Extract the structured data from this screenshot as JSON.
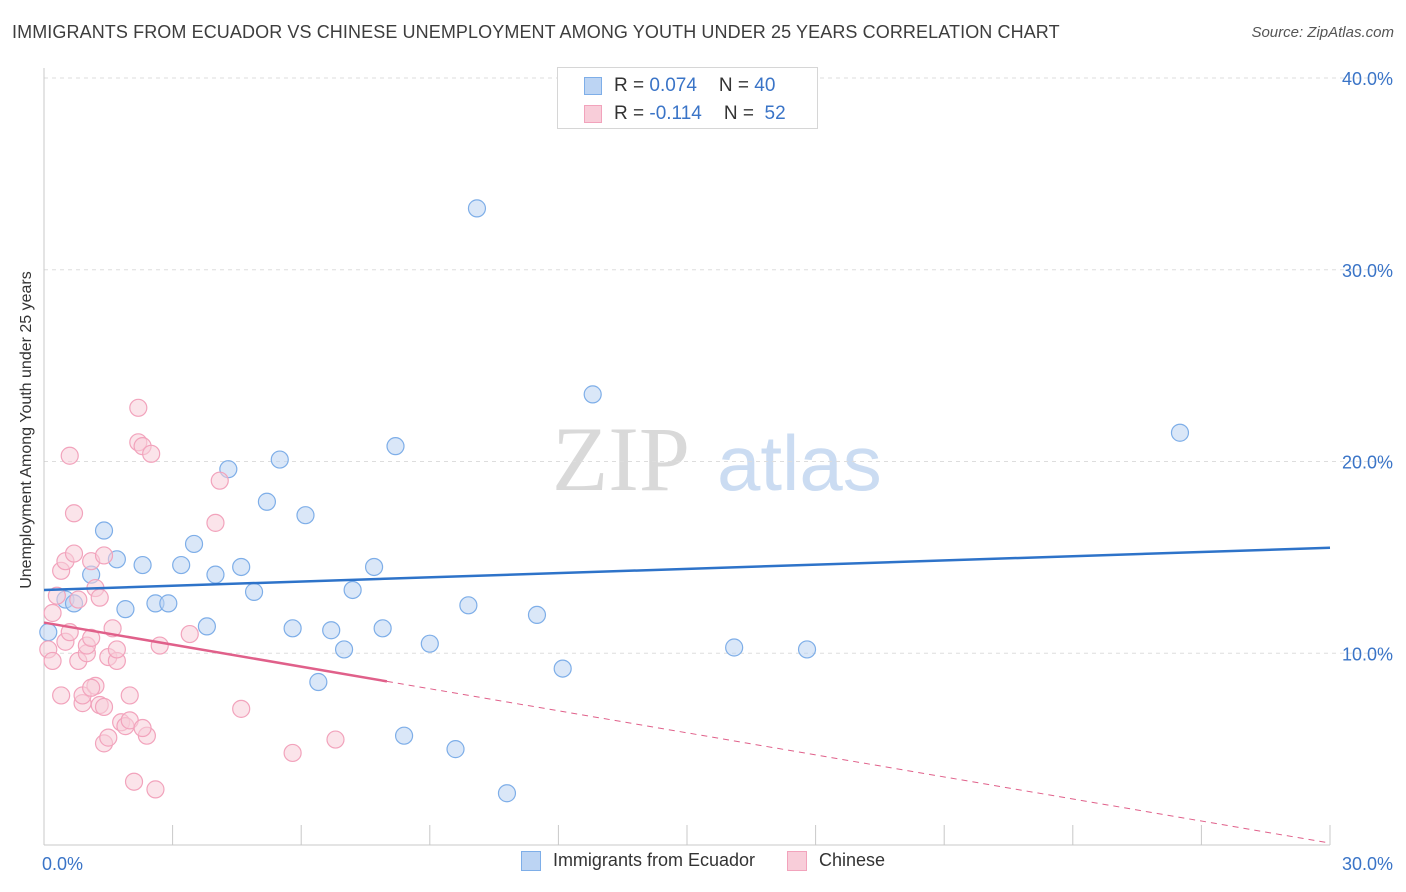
{
  "chart_data": {
    "type": "scatter",
    "title": "IMMIGRANTS FROM ECUADOR VS CHINESE UNEMPLOYMENT AMONG YOUTH UNDER 25 YEARS CORRELATION CHART",
    "source": "Source: ZipAtlas.com",
    "watermark": {
      "zip": "ZIP",
      "atlas": "atlas"
    },
    "ylabel": "Unemployment Among Youth under 25 years",
    "xlim": [
      0,
      30
    ],
    "ylim": [
      0,
      40
    ],
    "x_tick_labels": {
      "left": "0.0%",
      "right": "30.0%"
    },
    "y_ticks": [
      {
        "value": 10,
        "label": "10.0%"
      },
      {
        "value": 20,
        "label": "20.0%"
      },
      {
        "value": 30,
        "label": "30.0%"
      },
      {
        "value": 40,
        "label": "40.0%"
      }
    ],
    "series": [
      {
        "name": "Immigrants from Ecuador",
        "color": "#7eaee8",
        "fill": "#bcd4f3",
        "line_color": "#2e73c9",
        "R": "0.074",
        "N": "40",
        "trend": {
          "x0": 0,
          "y0": 13.3,
          "x1": 30,
          "y1": 15.5,
          "dashed_from": null
        },
        "points": [
          [
            0.1,
            11.1
          ],
          [
            0.5,
            12.8
          ],
          [
            0.7,
            12.6
          ],
          [
            1.1,
            14.1
          ],
          [
            1.4,
            16.4
          ],
          [
            1.7,
            14.9
          ],
          [
            1.9,
            12.3
          ],
          [
            2.3,
            14.6
          ],
          [
            2.6,
            12.6
          ],
          [
            2.9,
            12.6
          ],
          [
            3.2,
            14.6
          ],
          [
            3.5,
            15.7
          ],
          [
            3.8,
            11.4
          ],
          [
            4.0,
            14.1
          ],
          [
            4.3,
            19.6
          ],
          [
            4.6,
            14.5
          ],
          [
            4.9,
            13.2
          ],
          [
            5.2,
            17.9
          ],
          [
            5.5,
            20.1
          ],
          [
            5.8,
            11.3
          ],
          [
            6.1,
            17.2
          ],
          [
            6.4,
            8.5
          ],
          [
            6.7,
            11.2
          ],
          [
            7.0,
            10.2
          ],
          [
            7.2,
            13.3
          ],
          [
            7.7,
            14.5
          ],
          [
            7.9,
            11.3
          ],
          [
            8.2,
            20.8
          ],
          [
            8.4,
            5.7
          ],
          [
            9.0,
            10.5
          ],
          [
            9.6,
            5.0
          ],
          [
            9.9,
            12.5
          ],
          [
            10.1,
            33.2
          ],
          [
            10.8,
            2.7
          ],
          [
            11.5,
            12.0
          ],
          [
            12.1,
            9.2
          ],
          [
            12.8,
            23.5
          ],
          [
            16.1,
            10.3
          ],
          [
            17.8,
            10.2
          ],
          [
            26.5,
            21.5
          ]
        ]
      },
      {
        "name": "Chinese",
        "color": "#f2a3bc",
        "fill": "#f8cdd9",
        "line_color": "#e0608a",
        "R": "-0.114",
        "N": "52",
        "trend": {
          "x0": 0,
          "y0": 11.6,
          "x1": 30,
          "y1": 0.1,
          "dashed_from": 8.0
        },
        "points": [
          [
            0.1,
            10.2
          ],
          [
            0.2,
            9.6
          ],
          [
            0.2,
            12.1
          ],
          [
            0.3,
            13.0
          ],
          [
            0.4,
            14.3
          ],
          [
            0.4,
            7.8
          ],
          [
            0.5,
            10.6
          ],
          [
            0.5,
            14.8
          ],
          [
            0.6,
            11.1
          ],
          [
            0.6,
            20.3
          ],
          [
            0.7,
            17.3
          ],
          [
            0.7,
            15.2
          ],
          [
            0.8,
            9.6
          ],
          [
            0.9,
            7.4
          ],
          [
            0.9,
            7.8
          ],
          [
            1.0,
            10.0
          ],
          [
            1.0,
            10.4
          ],
          [
            1.1,
            14.8
          ],
          [
            1.1,
            10.8
          ],
          [
            1.2,
            13.4
          ],
          [
            1.2,
            8.3
          ],
          [
            1.3,
            12.9
          ],
          [
            1.3,
            7.3
          ],
          [
            1.4,
            15.1
          ],
          [
            1.4,
            5.3
          ],
          [
            1.5,
            9.8
          ],
          [
            1.5,
            5.6
          ],
          [
            1.6,
            11.3
          ],
          [
            1.7,
            9.6
          ],
          [
            1.7,
            10.2
          ],
          [
            1.8,
            6.4
          ],
          [
            1.9,
            6.2
          ],
          [
            2.0,
            6.5
          ],
          [
            2.0,
            7.8
          ],
          [
            2.1,
            3.3
          ],
          [
            2.2,
            22.8
          ],
          [
            2.2,
            21.0
          ],
          [
            2.3,
            20.8
          ],
          [
            2.4,
            5.7
          ],
          [
            2.5,
            20.4
          ],
          [
            2.6,
            2.9
          ],
          [
            2.7,
            10.4
          ],
          [
            3.4,
            11.0
          ],
          [
            4.0,
            16.8
          ],
          [
            4.1,
            19.0
          ],
          [
            4.6,
            7.1
          ],
          [
            5.8,
            4.8
          ],
          [
            6.8,
            5.5
          ],
          [
            0.8,
            12.8
          ],
          [
            1.4,
            7.2
          ],
          [
            2.3,
            6.1
          ],
          [
            1.1,
            8.2
          ]
        ]
      }
    ]
  }
}
